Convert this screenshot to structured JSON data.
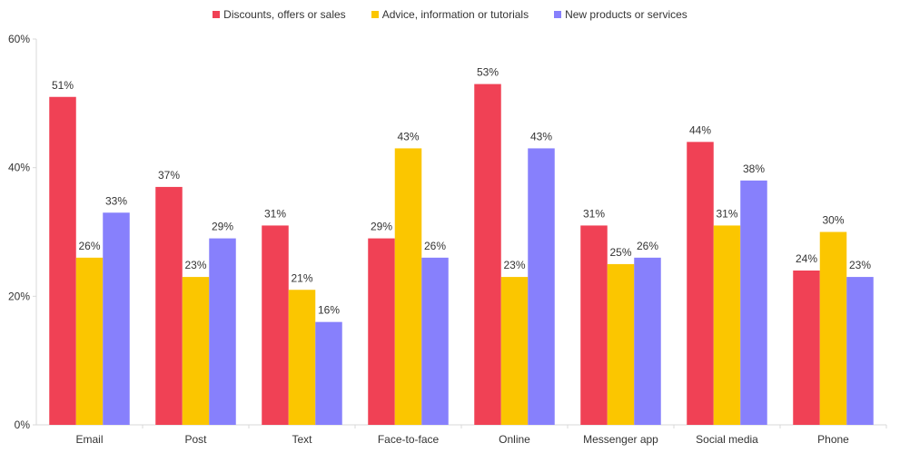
{
  "chart_data": {
    "type": "bar",
    "categories": [
      "Email",
      "Post",
      "Text",
      "Face-to-face",
      "Online",
      "Messenger app",
      "Social media",
      "Phone"
    ],
    "series": [
      {
        "name": "Discounts, offers or sales",
        "color": "#f04155",
        "values": [
          51,
          37,
          31,
          29,
          53,
          31,
          44,
          24
        ]
      },
      {
        "name": "Advice, information or tutorials",
        "color": "#fbc600",
        "values": [
          26,
          23,
          21,
          43,
          23,
          25,
          31,
          30
        ]
      },
      {
        "name": "New products or services",
        "color": "#8780fc",
        "values": [
          33,
          29,
          16,
          26,
          43,
          26,
          38,
          23
        ]
      }
    ],
    "y_ticks": [
      "0%",
      "20%",
      "40%",
      "60%"
    ],
    "ylim": [
      0,
      60
    ],
    "value_suffix": "%",
    "legend_position": "top-center",
    "grid": false
  }
}
